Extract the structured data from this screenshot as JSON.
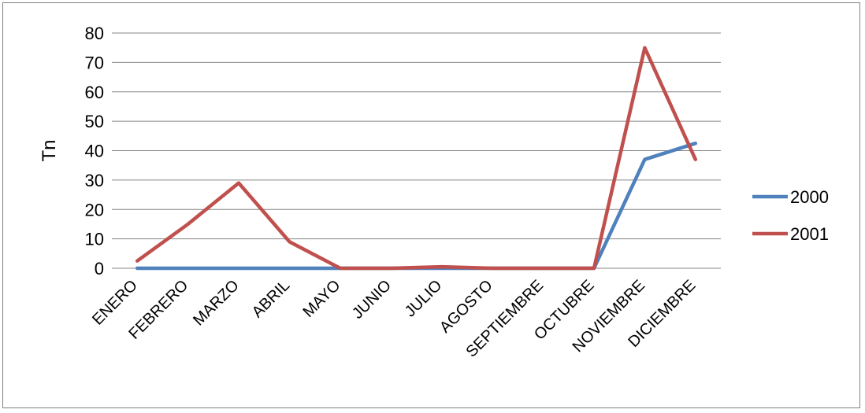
{
  "chart_data": {
    "type": "line",
    "title": "",
    "xlabel": "",
    "ylabel": "Tn",
    "ylim": [
      0,
      80
    ],
    "yticks": [
      "0",
      "10",
      "20",
      "30",
      "40",
      "50",
      "60",
      "70",
      "80"
    ],
    "grid": true,
    "legend_position": "right",
    "categories": [
      "ENERO",
      "FEBRERO",
      "MARZO",
      "ABRIL",
      "MAYO",
      "JUNIO",
      "JULIO",
      "AGOSTO",
      "SEPTIEMBRE",
      "OCTUBRE",
      "NOVIEMBRE",
      "DICIEMBRE"
    ],
    "series": [
      {
        "name": "2000",
        "color": "#4f81bd",
        "values": [
          0,
          0,
          0,
          0,
          0,
          0,
          0,
          0,
          0,
          0,
          37,
          42.5
        ]
      },
      {
        "name": "2001",
        "color": "#c0504d",
        "values": [
          2.5,
          15,
          29,
          9,
          0,
          0,
          0.5,
          0,
          0,
          0,
          75,
          37
        ]
      }
    ]
  }
}
